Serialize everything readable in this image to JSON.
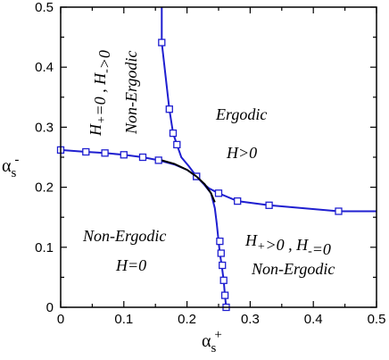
{
  "chart_data": {
    "type": "line",
    "title": "",
    "xlabel": {
      "symbol": "α",
      "sub": "s",
      "sup": "+"
    },
    "ylabel": {
      "symbol": "α",
      "sub": "s",
      "sup": "-"
    },
    "xlim": [
      0,
      0.5
    ],
    "ylim": [
      0,
      0.5
    ],
    "xticks": [
      0,
      0.1,
      0.2,
      0.3,
      0.4,
      0.5
    ],
    "yticks": [
      0,
      0.1,
      0.2,
      0.3,
      0.4,
      0.5
    ],
    "xtick_labels": [
      "0",
      "0.1",
      "0.2",
      "0.3",
      "0.4",
      "0.5"
    ],
    "ytick_labels": [
      "0",
      "0.1",
      "0.2",
      "0.3",
      "0.4",
      "0.5"
    ],
    "grid": false,
    "series": [
      {
        "style": "line+square-markers",
        "color": "#1f1fd0",
        "points": [
          [
            0.16,
            0.5
          ],
          [
            0.16,
            0.441
          ],
          [
            0.172,
            0.33
          ],
          [
            0.178,
            0.29
          ],
          [
            0.184,
            0.271
          ],
          [
            0.191,
            0.25
          ],
          [
            0.203,
            0.235
          ],
          [
            0.215,
            0.218
          ],
          [
            0.226,
            0.206
          ],
          [
            0.235,
            0.198
          ],
          [
            0.25,
            0.19
          ],
          [
            0.28,
            0.177
          ],
          [
            0.33,
            0.17
          ],
          [
            0.44,
            0.16
          ],
          [
            0.5,
            0.16
          ]
        ],
        "markers": [
          [
            0.16,
            0.441
          ],
          [
            0.172,
            0.33
          ],
          [
            0.178,
            0.29
          ],
          [
            0.184,
            0.271
          ],
          [
            0.215,
            0.218
          ],
          [
            0.25,
            0.19
          ],
          [
            0.28,
            0.177
          ],
          [
            0.33,
            0.17
          ],
          [
            0.44,
            0.16
          ]
        ]
      },
      {
        "style": "line+square-markers",
        "color": "#1f1fd0",
        "points": [
          [
            0.0,
            0.262
          ],
          [
            0.04,
            0.259
          ],
          [
            0.07,
            0.257
          ],
          [
            0.1,
            0.254
          ],
          [
            0.13,
            0.25
          ],
          [
            0.155,
            0.245
          ],
          [
            0.18,
            0.238
          ],
          [
            0.2,
            0.229
          ],
          [
            0.215,
            0.218
          ],
          [
            0.226,
            0.206
          ],
          [
            0.238,
            0.19
          ],
          [
            0.244,
            0.165
          ],
          [
            0.247,
            0.14
          ],
          [
            0.25,
            0.11
          ],
          [
            0.252,
            0.09
          ],
          [
            0.255,
            0.07
          ],
          [
            0.258,
            0.045
          ],
          [
            0.26,
            0.02
          ],
          [
            0.262,
            0.0
          ]
        ],
        "markers": [
          [
            0.0,
            0.262
          ],
          [
            0.04,
            0.259
          ],
          [
            0.07,
            0.257
          ],
          [
            0.1,
            0.254
          ],
          [
            0.13,
            0.25
          ],
          [
            0.155,
            0.245
          ],
          [
            0.215,
            0.218
          ],
          [
            0.252,
            0.11
          ],
          [
            0.254,
            0.09
          ],
          [
            0.256,
            0.07
          ],
          [
            0.258,
            0.045
          ],
          [
            0.26,
            0.02
          ],
          [
            0.262,
            0.0
          ]
        ]
      },
      {
        "style": "line",
        "color": "#000000",
        "points": [
          [
            0.16,
            0.245
          ],
          [
            0.18,
            0.239
          ],
          [
            0.2,
            0.229
          ],
          [
            0.215,
            0.218
          ],
          [
            0.228,
            0.205
          ],
          [
            0.238,
            0.19
          ],
          [
            0.244,
            0.175
          ]
        ]
      }
    ],
    "annotations": [
      {
        "name": "region-ergodic-title",
        "text": "Ergodic"
      },
      {
        "name": "region-ergodic-condition",
        "text": "H>0"
      },
      {
        "name": "region-top-left-condition",
        "text": "H+=0 , H->0"
      },
      {
        "name": "region-top-left-title",
        "text": "Non-Ergodic"
      },
      {
        "name": "region-bottom-left-title",
        "text": "Non-Ergodic"
      },
      {
        "name": "region-bottom-left-condition",
        "text": "H=0"
      },
      {
        "name": "region-bottom-right-condition",
        "text": "H+>0 , H-=0"
      },
      {
        "name": "region-bottom-right-title",
        "text": "Non-Ergodic"
      }
    ]
  }
}
